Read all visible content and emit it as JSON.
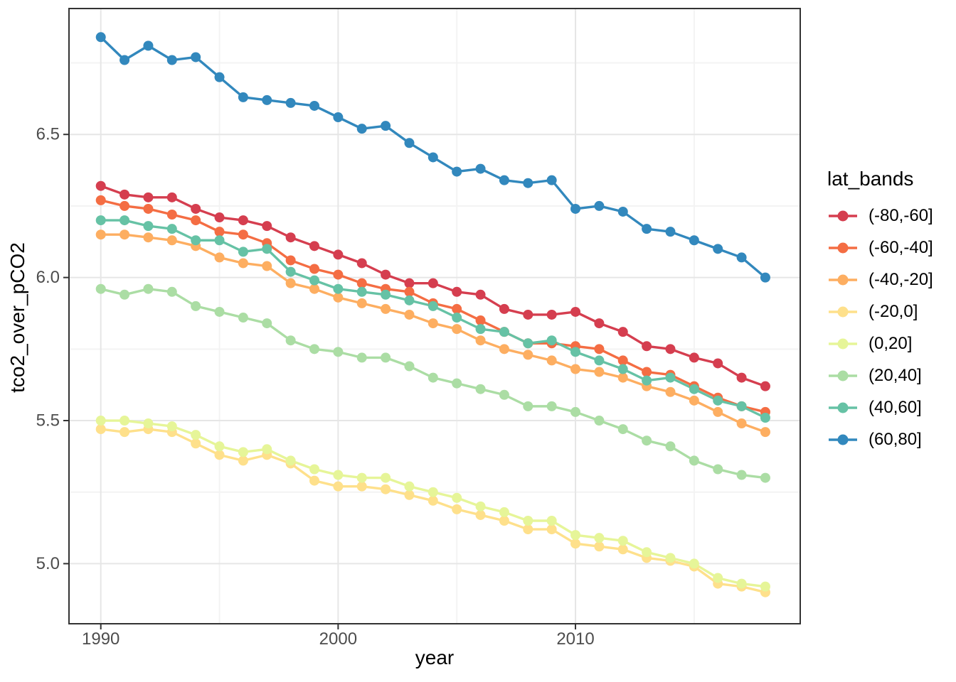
{
  "chart_data": {
    "type": "line",
    "title": "",
    "xlabel": "year",
    "ylabel": "tco2_over_pCO2",
    "legend": {
      "title": "lat_bands",
      "position": "right"
    },
    "grid": true,
    "xlim": [
      1988.66,
      2019.47
    ],
    "ylim": [
      4.79,
      6.94
    ],
    "x_ticks": [
      {
        "value": 1990,
        "label": "1990"
      },
      {
        "value": 2000,
        "label": "2000"
      },
      {
        "value": 2010,
        "label": "2010"
      }
    ],
    "x_minor": [
      1995,
      2005,
      2015
    ],
    "y_ticks": [
      {
        "value": 5.0,
        "label": "5.0"
      },
      {
        "value": 5.5,
        "label": "5.5"
      },
      {
        "value": 6.0,
        "label": "6.0"
      },
      {
        "value": 6.5,
        "label": "6.5"
      }
    ],
    "y_minor": [
      5.25,
      5.75,
      6.25,
      6.75
    ],
    "x": [
      1990,
      1991,
      1992,
      1993,
      1994,
      1995,
      1996,
      1997,
      1998,
      1999,
      2000,
      2001,
      2002,
      2003,
      2004,
      2005,
      2006,
      2007,
      2008,
      2009,
      2010,
      2011,
      2012,
      2013,
      2014,
      2015,
      2016,
      2017,
      2018
    ],
    "series": [
      {
        "name": "(-80,-60]",
        "color": "#d53e4f",
        "values": [
          6.32,
          6.29,
          6.28,
          6.28,
          6.24,
          6.21,
          6.2,
          6.18,
          6.14,
          6.11,
          6.08,
          6.05,
          6.01,
          5.98,
          5.98,
          5.95,
          5.94,
          5.89,
          5.87,
          5.87,
          5.88,
          5.84,
          5.81,
          5.76,
          5.75,
          5.72,
          5.7,
          5.65,
          5.62
        ]
      },
      {
        "name": "(-60,-40]",
        "color": "#f46d43",
        "values": [
          6.27,
          6.25,
          6.24,
          6.22,
          6.2,
          6.16,
          6.15,
          6.12,
          6.06,
          6.03,
          6.01,
          5.98,
          5.96,
          5.95,
          5.91,
          5.89,
          5.85,
          5.81,
          5.77,
          5.77,
          5.76,
          5.75,
          5.71,
          5.67,
          5.66,
          5.62,
          5.58,
          5.55,
          5.53
        ]
      },
      {
        "name": "(-40,-20]",
        "color": "#fdae61",
        "values": [
          6.15,
          6.15,
          6.14,
          6.13,
          6.11,
          6.07,
          6.05,
          6.04,
          5.98,
          5.96,
          5.93,
          5.91,
          5.89,
          5.87,
          5.84,
          5.82,
          5.78,
          5.75,
          5.73,
          5.71,
          5.68,
          5.67,
          5.65,
          5.62,
          5.6,
          5.57,
          5.53,
          5.49,
          5.46
        ]
      },
      {
        "name": "(-20,0]",
        "color": "#fee08b",
        "values": [
          5.47,
          5.46,
          5.47,
          5.46,
          5.42,
          5.38,
          5.36,
          5.38,
          5.35,
          5.29,
          5.27,
          5.27,
          5.26,
          5.24,
          5.22,
          5.19,
          5.17,
          5.15,
          5.12,
          5.12,
          5.07,
          5.06,
          5.05,
          5.02,
          5.01,
          4.99,
          4.93,
          4.92,
          4.9
        ]
      },
      {
        "name": "(0,20]",
        "color": "#e6f598",
        "values": [
          5.5,
          5.5,
          5.49,
          5.48,
          5.45,
          5.41,
          5.39,
          5.4,
          5.36,
          5.33,
          5.31,
          5.3,
          5.3,
          5.27,
          5.25,
          5.23,
          5.2,
          5.18,
          5.15,
          5.15,
          5.1,
          5.09,
          5.08,
          5.04,
          5.02,
          5.0,
          4.95,
          4.93,
          4.92
        ]
      },
      {
        "name": "(20,40]",
        "color": "#abdda4",
        "values": [
          5.96,
          5.94,
          5.96,
          5.95,
          5.9,
          5.88,
          5.86,
          5.84,
          5.78,
          5.75,
          5.74,
          5.72,
          5.72,
          5.69,
          5.65,
          5.63,
          5.61,
          5.59,
          5.55,
          5.55,
          5.53,
          5.5,
          5.47,
          5.43,
          5.41,
          5.36,
          5.33,
          5.31,
          5.3
        ]
      },
      {
        "name": "(40,60]",
        "color": "#66c2a5",
        "values": [
          6.2,
          6.2,
          6.18,
          6.17,
          6.13,
          6.13,
          6.09,
          6.1,
          6.02,
          5.99,
          5.96,
          5.95,
          5.94,
          5.92,
          5.9,
          5.86,
          5.82,
          5.81,
          5.77,
          5.78,
          5.74,
          5.71,
          5.68,
          5.64,
          5.65,
          5.61,
          5.57,
          5.55,
          5.51
        ]
      },
      {
        "name": "(60,80]",
        "color": "#3288bd",
        "values": [
          6.84,
          6.76,
          6.81,
          6.76,
          6.77,
          6.7,
          6.63,
          6.62,
          6.61,
          6.6,
          6.56,
          6.52,
          6.53,
          6.47,
          6.42,
          6.37,
          6.38,
          6.34,
          6.33,
          6.34,
          6.24,
          6.25,
          6.23,
          6.17,
          6.16,
          6.13,
          6.1,
          6.07,
          6.0
        ]
      }
    ],
    "style": {
      "panel_background": "#ffffff",
      "panel_border": "#333333",
      "grid_major": "#e6e6e6",
      "grid_minor": "#f3f3f3",
      "tick_color": "#333333",
      "tick_label_color": "#4d4d4d",
      "line_width": 3.4,
      "point_radius": 7
    }
  }
}
